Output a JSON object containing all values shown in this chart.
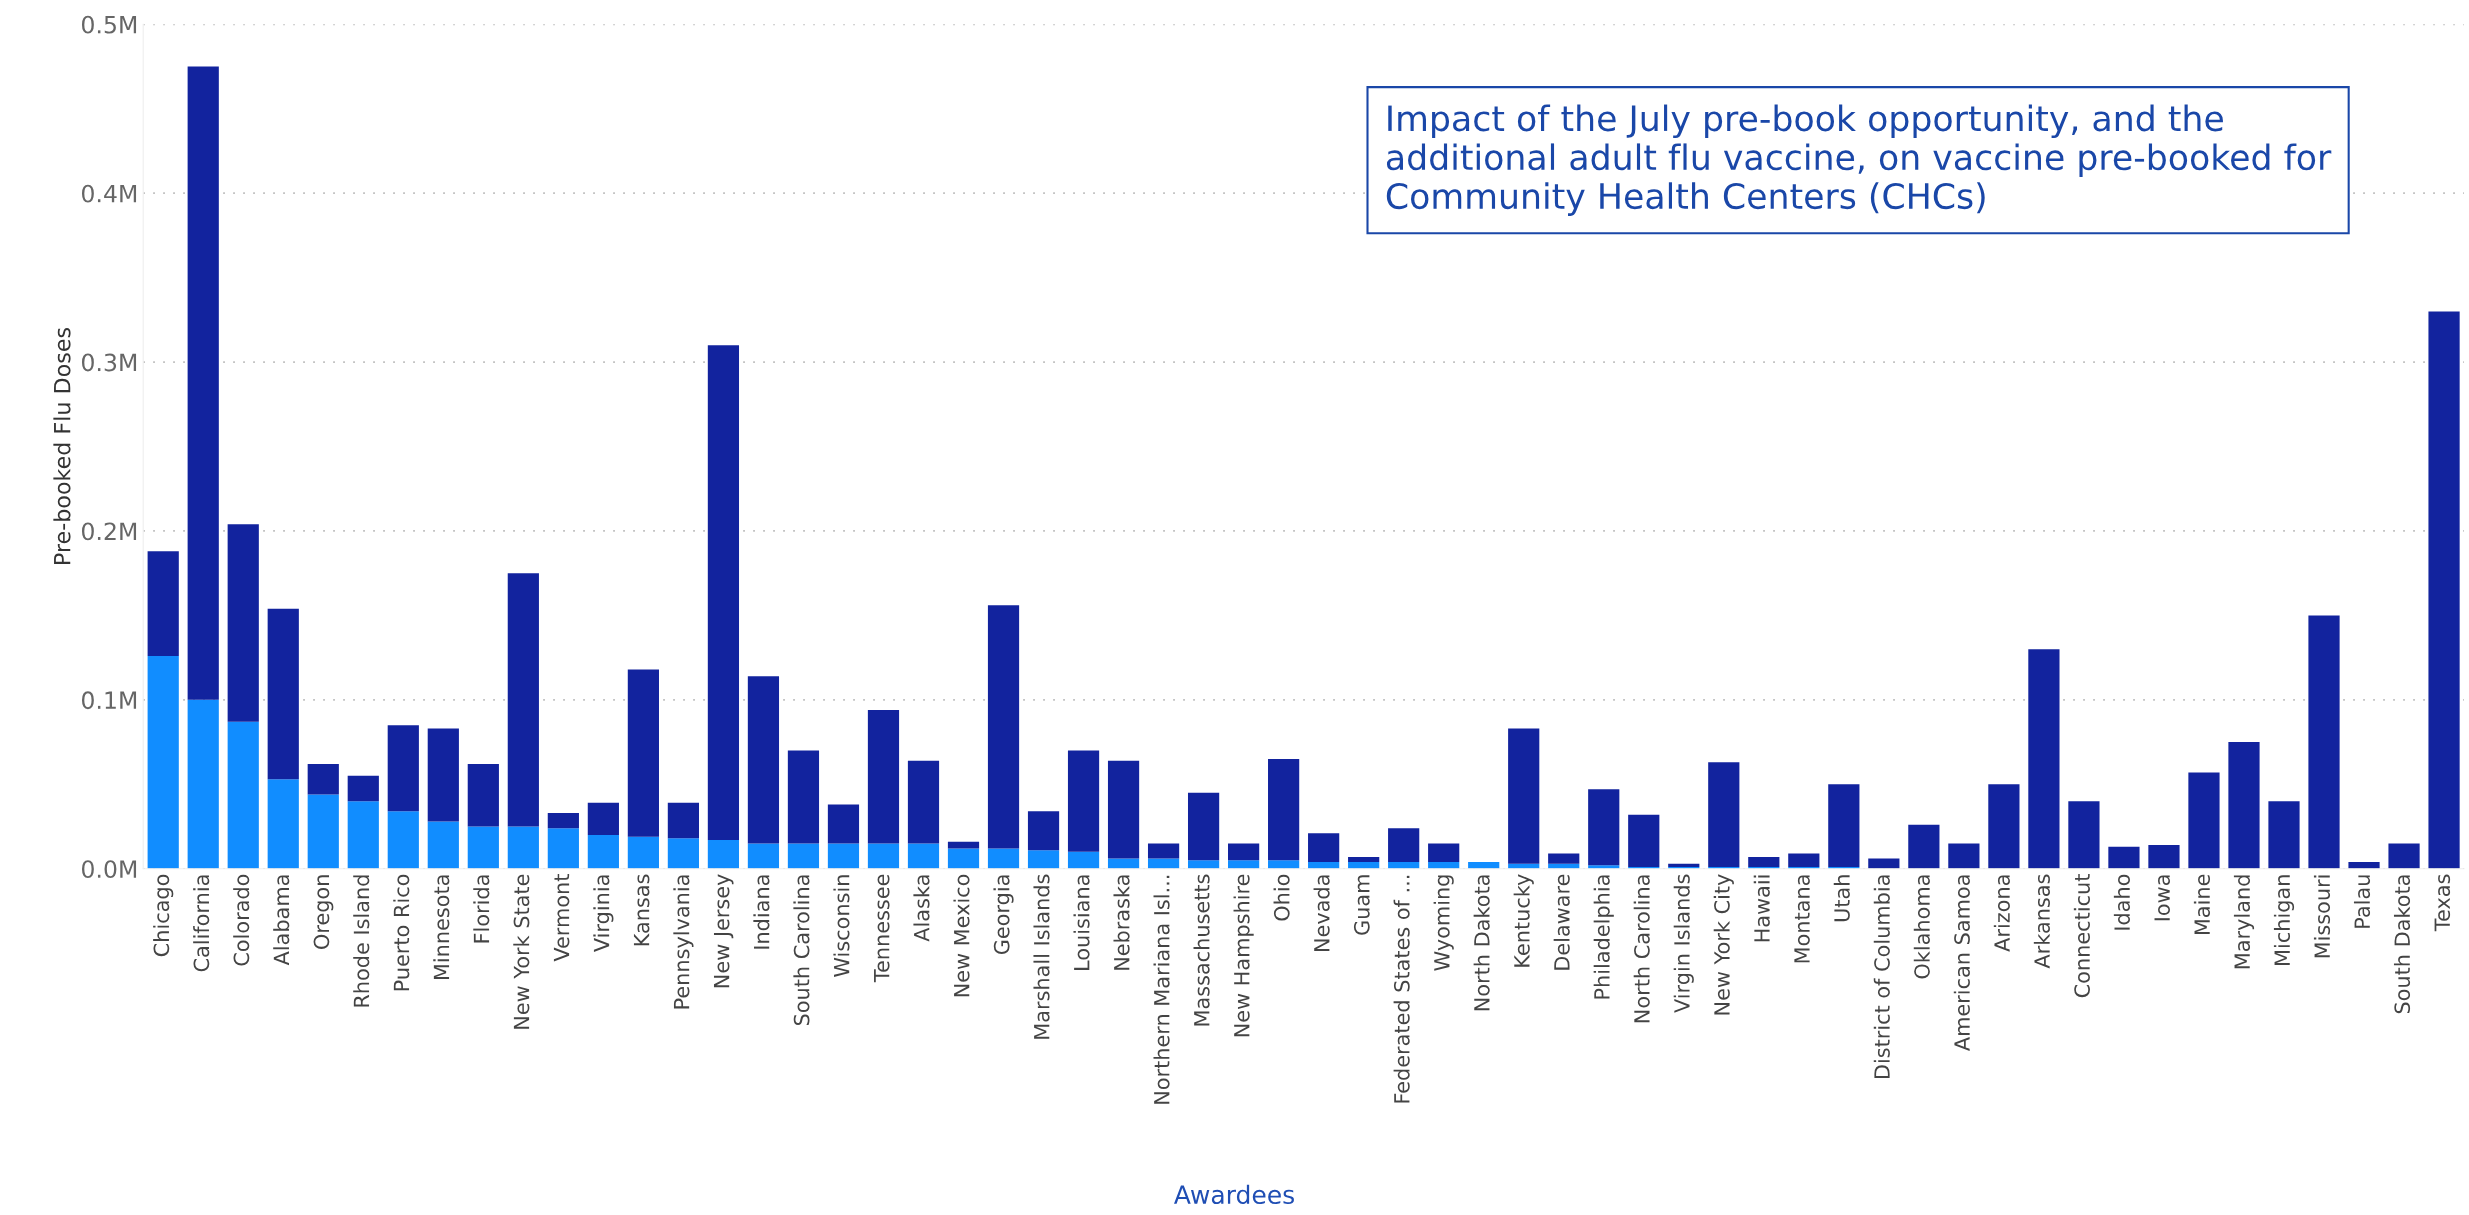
{
  "chart_data": {
    "type": "bar",
    "stacked": true,
    "annotations": [
      "Impact of the July pre-book opportunity, and the additional adult flu vaccine, on vaccine pre-booked for Community Health Centers (CHCs)"
    ],
    "xlabel": "Awardees",
    "ylabel": "Pre-booked Flu Doses",
    "categories": [
      "Chicago",
      "California",
      "Colorado",
      "Alabama",
      "Oregon",
      "Rhode Island",
      "Puerto Rico",
      "Minnesota",
      "Florida",
      "New York State",
      "Vermont",
      "Virginia",
      "Kansas",
      "Pennsylvania",
      "New Jersey",
      "Indiana",
      "South Carolina",
      "Wisconsin",
      "Tennessee",
      "Alaska",
      "New Mexico",
      "Georgia",
      "Marshall Islands",
      "Louisiana",
      "Nebraska",
      "Northern Mariana Isl...",
      "Massachusetts",
      "New Hampshire",
      "Ohio",
      "Nevada",
      "Guam",
      "Federated States of ...",
      "Wyoming",
      "North Dakota",
      "Kentucky",
      "Delaware",
      "Philadelphia",
      "North Carolina",
      "Virgin Islands",
      "New York City",
      "Hawaii",
      "Montana",
      "Utah",
      "District of Columbia",
      "Oklahoma",
      "American Samoa",
      "Arizona",
      "Arkansas",
      "Connecticut",
      "Idaho",
      "Iowa",
      "Maine",
      "Maryland",
      "Michigan",
      "Missouri",
      "Palau",
      "South Dakota",
      "Texas"
    ],
    "series": [
      {
        "color": "#118dff",
        "values": [
          126000,
          100000,
          87000,
          53000,
          44000,
          40000,
          34000,
          28000,
          25000,
          25000,
          24000,
          20000,
          19000,
          18000,
          17000,
          15000,
          15000,
          15000,
          15000,
          15000,
          12000,
          12000,
          11000,
          10000,
          6000,
          6000,
          5000,
          5000,
          5000,
          4000,
          4000,
          4000,
          4000,
          4000,
          3000,
          3000,
          2000,
          1000,
          1000,
          1000,
          1000,
          1000,
          1000,
          0,
          0,
          0,
          0,
          0,
          0,
          0,
          0,
          0,
          0,
          0,
          0,
          0,
          0,
          0
        ]
      },
      {
        "color": "#12239e",
        "values": [
          62000,
          375000,
          117000,
          101000,
          18000,
          15000,
          51000,
          55000,
          37000,
          150000,
          9000,
          19000,
          99000,
          21000,
          293000,
          99000,
          55000,
          23000,
          79000,
          49000,
          4000,
          144000,
          23000,
          60000,
          58000,
          9000,
          40000,
          10000,
          60000,
          17000,
          3000,
          20000,
          11000,
          0,
          80000,
          6000,
          45000,
          31000,
          2000,
          62000,
          6000,
          8000,
          49000,
          6000,
          26000,
          15000,
          50000,
          130000,
          40000,
          13000,
          14000,
          57000,
          75000,
          40000,
          150000,
          4000,
          15000,
          330000
        ]
      }
    ],
    "ylim": [
      0,
      500000
    ],
    "yticks": [
      {
        "value": 0,
        "label": "0.0M"
      },
      {
        "value": 100000,
        "label": "0.1M"
      },
      {
        "value": 200000,
        "label": "0.2M"
      },
      {
        "value": 300000,
        "label": "0.3M"
      },
      {
        "value": 400000,
        "label": "0.4M"
      },
      {
        "value": 500000,
        "label": "0.5M"
      }
    ],
    "grid": "y"
  }
}
